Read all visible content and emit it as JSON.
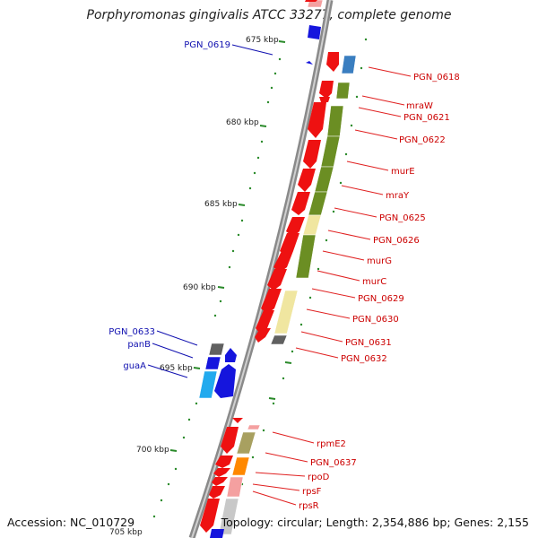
{
  "title": "Porphyromonas gingivalis ATCC 33277, complete genome",
  "footer": {
    "accession": "Accession: NC_010729",
    "summary": "Topology: circular; Length: 2,354,886 bp; Genes: 2,155"
  },
  "scale_labels": [
    "675 kbp",
    "680 kbp",
    "685 kbp",
    "690 kbp",
    "695 kbp",
    "700 kbp",
    "705 kbp"
  ],
  "forward_genes": [
    "PGN_0618",
    "mraW",
    "PGN_0621",
    "PGN_0622",
    "murE",
    "mraY",
    "PGN_0625",
    "PGN_0626",
    "murG",
    "murC",
    "PGN_0629",
    "PGN_0630",
    "PGN_0631",
    "PGN_0632",
    "rpmE2",
    "PGN_0637",
    "rpoD",
    "rpsF",
    "rpsR"
  ],
  "reverse_genes": [
    "PGN_0619",
    "PGN_0633",
    "panB",
    "guaA"
  ],
  "colors": {
    "forward_label": "#cc0000",
    "reverse_label": "#1010b0",
    "backbone": "#8a8a8a",
    "tick": "#2a8a2a",
    "cog_green": "#6b8e23",
    "cog_yellow": "#f0e6a0",
    "cds_red": "#ee1111",
    "cds_blue": "#1515dd"
  }
}
